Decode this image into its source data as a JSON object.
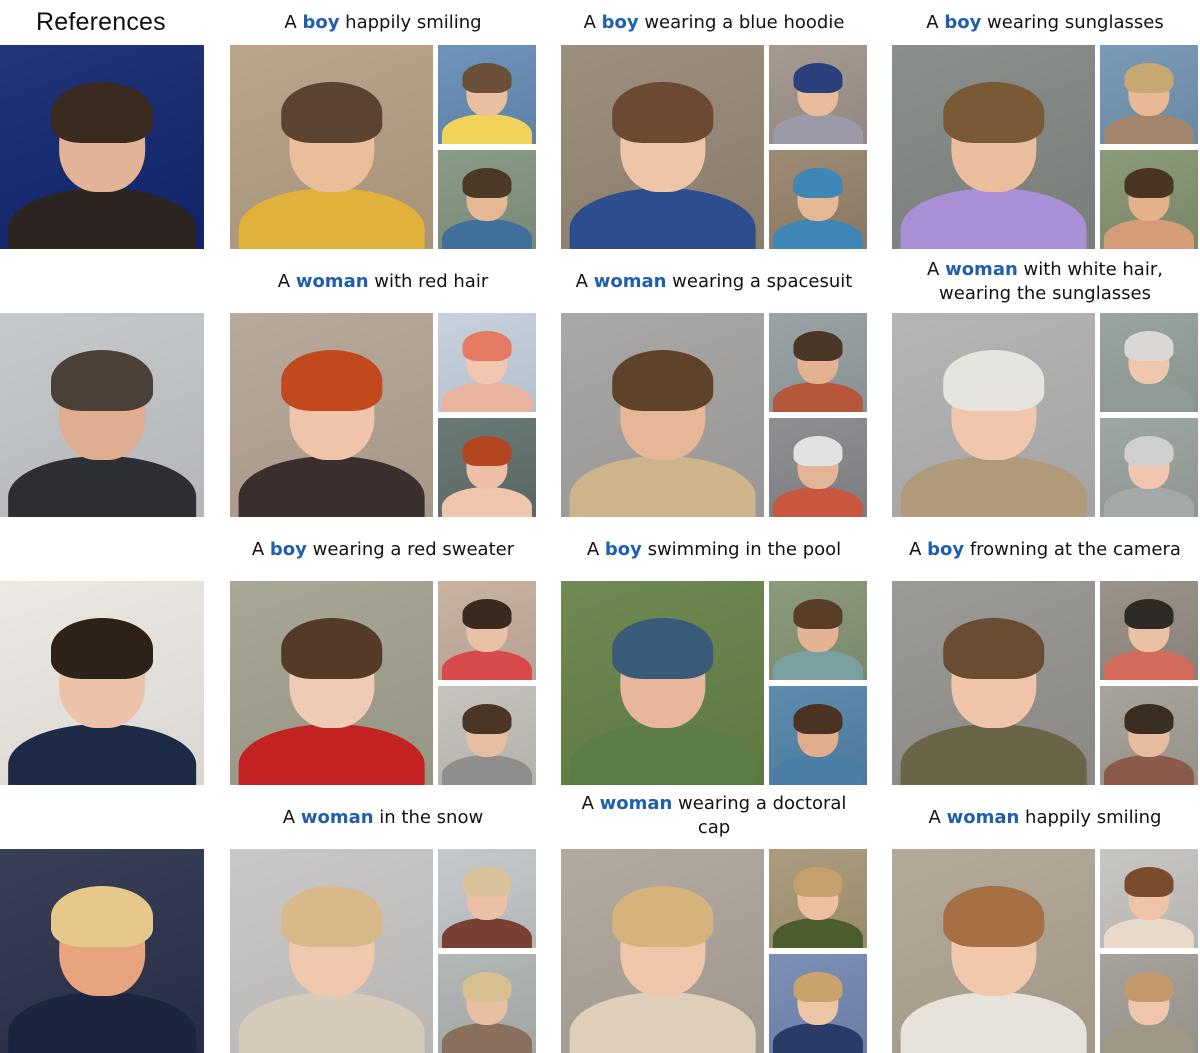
{
  "header": {
    "references_label": "References"
  },
  "rows": [
    {
      "reference": {
        "bg": "#23357a",
        "skin": "#e2b397",
        "hair": "#3b2a20",
        "cloth": "#2b2420"
      },
      "panels": [
        {
          "caption": {
            "before": "A ",
            "keyword": "boy",
            "after": " happily smiling",
            "line2": ""
          },
          "main": {
            "bg": "#b9a48c",
            "skin": "#eabd9b",
            "hair": "#5a4330",
            "cloth": "#e0b23c"
          },
          "small": [
            {
              "bg": "#6f93b9",
              "skin": "#eabf9f",
              "hair": "#6b4f38",
              "cloth": "#f2d35a"
            },
            {
              "bg": "#8a9c88",
              "skin": "#e6b795",
              "hair": "#4b3826",
              "cloth": "#3f6f9a"
            }
          ]
        },
        {
          "caption": {
            "before": "A ",
            "keyword": "boy",
            "after": " wearing a blue hoodie",
            "line2": ""
          },
          "main": {
            "bg": "#9c8f7e",
            "skin": "#eec5a6",
            "hair": "#6b4a31",
            "cloth": "#2c4d8e"
          },
          "small": [
            {
              "bg": "#a59a92",
              "skin": "#e8bb9b",
              "hair": "#2a3f7c",
              "cloth": "#9c9aa8"
            },
            {
              "bg": "#9c8a74",
              "skin": "#e5b894",
              "hair": "#3d86b6",
              "cloth": "#3d86b6"
            }
          ]
        },
        {
          "caption": {
            "before": "A ",
            "keyword": "boy",
            "after": " wearing sunglasses",
            "line2": ""
          },
          "main": {
            "bg": "#8a8f8c",
            "skin": "#eabd9c",
            "hair": "#7a5a36",
            "cloth": "#a98fd6"
          },
          "small": [
            {
              "bg": "#7a9ab6",
              "skin": "#e8b895",
              "hair": "#c7a873",
              "cloth": "#a2856a"
            },
            {
              "bg": "#8b9a78",
              "skin": "#e4b18b",
              "hair": "#4a3524",
              "cloth": "#d69c7a"
            }
          ]
        }
      ]
    },
    {
      "reference": {
        "bg": "#c6c9cc",
        "skin": "#dfae90",
        "hair": "#4a4038",
        "cloth": "#2d2e33"
      },
      "panels": [
        {
          "caption": {
            "before": "A ",
            "keyword": "woman",
            "after": " with red hair",
            "line2": ""
          },
          "main": {
            "bg": "#b8a99a",
            "skin": "#f0c4aa",
            "hair": "#c2481e",
            "cloth": "#3a2f2c"
          },
          "small": [
            {
              "bg": "#c7d2de",
              "skin": "#f1c7b2",
              "hair": "#e57a64",
              "cloth": "#e9b3a0"
            },
            {
              "bg": "#6b7a76",
              "skin": "#eebfa6",
              "hair": "#b3461f",
              "cloth": "#efc5ae"
            }
          ]
        },
        {
          "caption": {
            "before": "A ",
            "keyword": "woman",
            "after": " wearing a spacesuit",
            "line2": ""
          },
          "main": {
            "bg": "#a9a8a6",
            "skin": "#e6b697",
            "hair": "#5e4229",
            "cloth": "#cdb48a"
          },
          "small": [
            {
              "bg": "#9aa3a6",
              "skin": "#e2b293",
              "hair": "#4a3728",
              "cloth": "#b6563a"
            },
            {
              "bg": "#8e8f93",
              "skin": "#e4b497",
              "hair": "#e2e2e4",
              "cloth": "#c7583f"
            }
          ]
        },
        {
          "caption": {
            "before": "A ",
            "keyword": "woman",
            "after": " with white hair,",
            "line2": "wearing the sunglasses"
          },
          "main": {
            "bg": "#b6b5b5",
            "skin": "#f0c6ac",
            "hair": "#e6e4df",
            "cloth": "#b09a7a"
          },
          "small": [
            {
              "bg": "#9aa5a0",
              "skin": "#efc6ae",
              "hair": "#d9d8d6",
              "cloth": "#8f9a99"
            },
            {
              "bg": "#9fa7a3",
              "skin": "#f0c7ae",
              "hair": "#cfcfcf",
              "cloth": "#a2a9a8"
            }
          ]
        }
      ]
    },
    {
      "reference": {
        "bg": "#ece8e4",
        "skin": "#ecc3a8",
        "hair": "#2e2218",
        "cloth": "#1c2a45"
      },
      "panels": [
        {
          "caption": {
            "before": "A ",
            "keyword": "boy",
            "after": " wearing a red sweater",
            "line2": ""
          },
          "main": {
            "bg": "#a8a796",
            "skin": "#efcab4",
            "hair": "#553b27",
            "cloth": "#c32323"
          },
          "small": [
            {
              "bg": "#c8b2a2",
              "skin": "#e9c1a6",
              "hair": "#3a2a1d",
              "cloth": "#d84a4a"
            },
            {
              "bg": "#c6c3bd",
              "skin": "#e6bfa3",
              "hair": "#4a3526",
              "cloth": "#8e8e8e"
            }
          ]
        },
        {
          "caption": {
            "before": "A ",
            "keyword": "boy",
            "after": " swimming in the pool",
            "line2": ""
          },
          "main": {
            "bg": "#6f8a52",
            "skin": "#e8b698",
            "hair": "#3a5a7a",
            "cloth": "#5c7d43"
          },
          "small": [
            {
              "bg": "#8c9a7d",
              "skin": "#e4b394",
              "hair": "#5a3d26",
              "cloth": "#7aa0a0"
            },
            {
              "bg": "#5d8cae",
              "skin": "#e0ae8d",
              "hair": "#4a3322",
              "cloth": "#4b7ea6"
            }
          ]
        },
        {
          "caption": {
            "before": "A ",
            "keyword": "boy",
            "after": " frowning at the camera",
            "line2": ""
          },
          "main": {
            "bg": "#9b9a96",
            "skin": "#efc4a8",
            "hair": "#6a4c32",
            "cloth": "#6b6548"
          },
          "small": [
            {
              "bg": "#9a938a",
              "skin": "#ebc1a5",
              "hair": "#2e2a25",
              "cloth": "#d26b5a"
            },
            {
              "bg": "#a8a39b",
              "skin": "#e7bca0",
              "hair": "#3a2d22",
              "cloth": "#8a5a4a"
            }
          ]
        }
      ]
    },
    {
      "reference": {
        "bg": "#3a3f58",
        "skin": "#e8a37f",
        "hair": "#e6c98a",
        "cloth": "#1c2540"
      },
      "panels": [
        {
          "caption": {
            "before": "A ",
            "keyword": "woman",
            "after": " in the snow",
            "line2": ""
          },
          "main": {
            "bg": "#c9c8c6",
            "skin": "#f0c8ad",
            "hair": "#d9b98a",
            "cloth": "#d6cabb"
          },
          "small": [
            {
              "bg": "#c5c9cb",
              "skin": "#ebc1a5",
              "hair": "#d9c19a",
              "cloth": "#7a3f34"
            },
            {
              "bg": "#b3b7b6",
              "skin": "#e9bfa3",
              "hair": "#d8bf92",
              "cloth": "#8a6f5c"
            }
          ]
        },
        {
          "caption": {
            "before": "A ",
            "keyword": "woman",
            "after": " wearing a doctoral",
            "line2": "cap"
          },
          "main": {
            "bg": "#b2aaa0",
            "skin": "#f0c6aa",
            "hair": "#d6b27c",
            "cloth": "#e0cfb8"
          },
          "small": [
            {
              "bg": "#aa9c7c",
              "skin": "#ebbf9f",
              "hair": "#c59f6d",
              "cloth": "#4b5d2a"
            },
            {
              "bg": "#7c8fb6",
              "skin": "#eec4a6",
              "hair": "#c9a26d",
              "cloth": "#2a3b6a"
            }
          ]
        },
        {
          "caption": {
            "before": "A ",
            "keyword": "woman",
            "after": " happily smiling",
            "line2": ""
          },
          "main": {
            "bg": "#b4aa9a",
            "skin": "#f2c8ac",
            "hair": "#a56f43",
            "cloth": "#e7e3dc"
          },
          "small": [
            {
              "bg": "#c8c6c2",
              "skin": "#efc3a6",
              "hair": "#7a4c2c",
              "cloth": "#e9d9ca"
            },
            {
              "bg": "#a6a39c",
              "skin": "#efc6ab",
              "hair": "#c49a6c",
              "cloth": "#9e9786"
            }
          ]
        }
      ]
    }
  ]
}
